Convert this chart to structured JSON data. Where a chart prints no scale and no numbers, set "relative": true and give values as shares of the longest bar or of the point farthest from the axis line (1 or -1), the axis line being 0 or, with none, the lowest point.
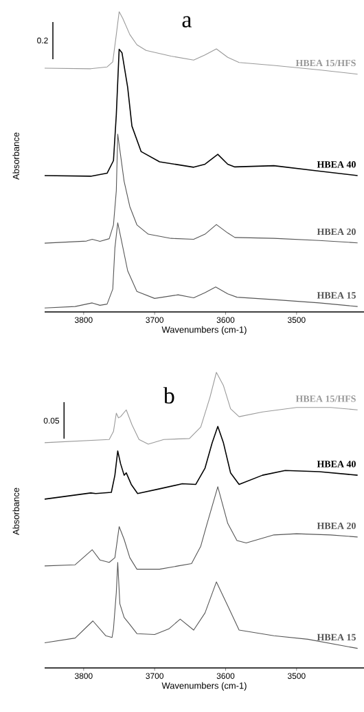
{
  "chart_data": [
    {
      "type": "line",
      "title": "a",
      "xlabel": "Wavenumbers (cm-1)",
      "ylabel": "Absorbance",
      "relative": true,
      "xlim": [
        3855,
        3405
      ],
      "xticks": [
        3800,
        3700,
        3600,
        3500
      ],
      "annotations": [
        "0.2"
      ],
      "series": [
        {
          "name": "HBEA 15/HFS",
          "color": "#999999",
          "x": [
            3855,
            3790,
            3767,
            3759,
            3754,
            3750,
            3745,
            3735,
            3725,
            3712,
            3677,
            3645,
            3629,
            3613,
            3597,
            3581,
            3532,
            3468,
            3414
          ],
          "values": [
            0.812,
            0.81,
            0.816,
            0.833,
            0.924,
            1.0,
            0.978,
            0.924,
            0.89,
            0.871,
            0.852,
            0.839,
            0.856,
            0.876,
            0.848,
            0.831,
            0.821,
            0.806,
            0.792
          ]
        },
        {
          "name": "HBEA 40",
          "color": "#000000",
          "x": [
            3855,
            3790,
            3767,
            3758,
            3754,
            3750,
            3746,
            3738,
            3732,
            3719,
            3693,
            3645,
            3629,
            3611,
            3597,
            3587,
            3532,
            3468,
            3414
          ],
          "values": [
            0.454,
            0.452,
            0.462,
            0.504,
            0.657,
            0.875,
            0.863,
            0.748,
            0.619,
            0.534,
            0.5,
            0.482,
            0.492,
            0.525,
            0.492,
            0.483,
            0.487,
            0.469,
            0.454
          ]
        },
        {
          "name": "HBEA 20",
          "color": "#555555",
          "x": [
            3855,
            3796,
            3788,
            3777,
            3764,
            3758,
            3754,
            3752,
            3743,
            3735,
            3725,
            3709,
            3677,
            3645,
            3629,
            3613,
            3597,
            3587,
            3532,
            3468,
            3414
          ],
          "values": [
            0.229,
            0.236,
            0.242,
            0.235,
            0.244,
            0.29,
            0.404,
            0.592,
            0.435,
            0.351,
            0.29,
            0.259,
            0.245,
            0.242,
            0.259,
            0.291,
            0.263,
            0.248,
            0.245,
            0.238,
            0.23
          ]
        },
        {
          "name": "HBEA 15",
          "color": "#555555",
          "x": [
            3855,
            3812,
            3788,
            3777,
            3767,
            3759,
            3756,
            3752,
            3748,
            3738,
            3725,
            3700,
            3667,
            3645,
            3629,
            3614,
            3597,
            3584,
            3532,
            3468,
            3414
          ],
          "values": [
            0.013,
            0.018,
            0.03,
            0.022,
            0.026,
            0.076,
            0.213,
            0.297,
            0.252,
            0.137,
            0.068,
            0.045,
            0.057,
            0.047,
            0.064,
            0.083,
            0.06,
            0.049,
            0.041,
            0.03,
            0.018
          ]
        }
      ]
    },
    {
      "type": "line",
      "title": "b",
      "xlabel": "Wavenumbers (cm-1)",
      "ylabel": "Absorbance",
      "relative": true,
      "xlim": [
        3855,
        3405
      ],
      "xticks": [
        3800,
        3700,
        3600,
        3500
      ],
      "annotations": [
        "0.05"
      ],
      "series": [
        {
          "name": "HBEA 15/HFS",
          "color": "#999999",
          "x": [
            3855,
            3764,
            3758,
            3754,
            3751,
            3748,
            3740,
            3732,
            3722,
            3709,
            3687,
            3651,
            3635,
            3622,
            3613,
            3603,
            3593,
            3581,
            3548,
            3500,
            3452,
            3414
          ],
          "values": [
            0.762,
            0.773,
            0.8,
            0.862,
            0.846,
            0.85,
            0.873,
            0.823,
            0.773,
            0.757,
            0.773,
            0.776,
            0.815,
            0.916,
            1.0,
            0.955,
            0.877,
            0.85,
            0.866,
            0.881,
            0.881,
            0.873
          ]
        },
        {
          "name": "HBEA 40",
          "color": "#000000",
          "x": [
            3855,
            3790,
            3783,
            3761,
            3756,
            3752,
            3748,
            3743,
            3740,
            3733,
            3724,
            3693,
            3661,
            3642,
            3629,
            3619,
            3611,
            3603,
            3593,
            3581,
            3548,
            3516,
            3468,
            3414
          ],
          "values": [
            0.571,
            0.592,
            0.59,
            0.594,
            0.652,
            0.734,
            0.691,
            0.652,
            0.66,
            0.621,
            0.59,
            0.606,
            0.623,
            0.621,
            0.676,
            0.761,
            0.817,
            0.761,
            0.66,
            0.621,
            0.652,
            0.668,
            0.664,
            0.652
          ]
        },
        {
          "name": "HBEA 20",
          "color": "#555555",
          "x": [
            3855,
            3812,
            3788,
            3777,
            3764,
            3756,
            3750,
            3743,
            3735,
            3725,
            3693,
            3667,
            3648,
            3635,
            3626,
            3611,
            3597,
            3584,
            3571,
            3532,
            3500,
            3452,
            3414
          ],
          "values": [
            0.345,
            0.349,
            0.4,
            0.365,
            0.357,
            0.373,
            0.478,
            0.435,
            0.373,
            0.334,
            0.334,
            0.345,
            0.353,
            0.412,
            0.489,
            0.613,
            0.489,
            0.431,
            0.423,
            0.45,
            0.454,
            0.45,
            0.443
          ]
        },
        {
          "name": "HBEA 15",
          "color": "#555555",
          "x": [
            3855,
            3812,
            3787,
            3769,
            3760,
            3758,
            3754,
            3752,
            3749,
            3743,
            3735,
            3725,
            3700,
            3680,
            3664,
            3645,
            3629,
            3613,
            3597,
            3581,
            3532,
            3484,
            3414
          ],
          "values": [
            0.085,
            0.101,
            0.159,
            0.109,
            0.103,
            0.132,
            0.256,
            0.357,
            0.217,
            0.171,
            0.147,
            0.116,
            0.113,
            0.132,
            0.165,
            0.128,
            0.186,
            0.291,
            0.21,
            0.128,
            0.109,
            0.097,
            0.066
          ]
        }
      ]
    }
  ]
}
